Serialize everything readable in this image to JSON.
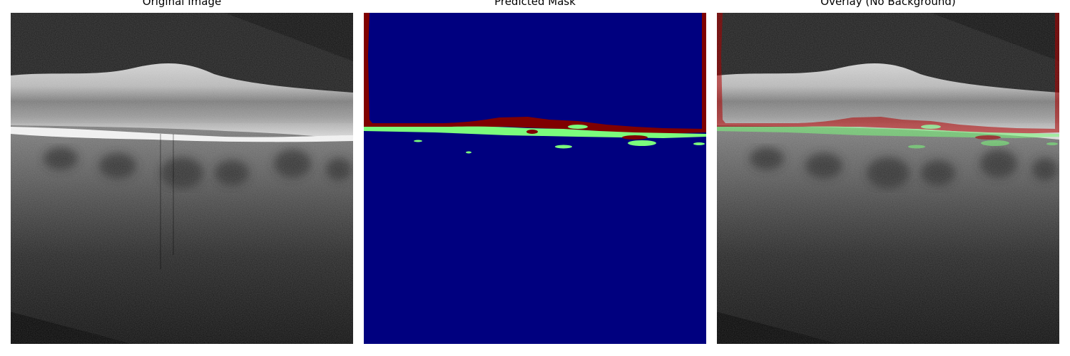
{
  "panels": [
    {
      "title": "Original Image"
    },
    {
      "title": "Predicted Mask"
    },
    {
      "title": "Overlay (No Background)"
    }
  ],
  "colors": {
    "background_class": "#00007f",
    "class_red": "#7f0000",
    "class_green": "#7cfc7c"
  }
}
